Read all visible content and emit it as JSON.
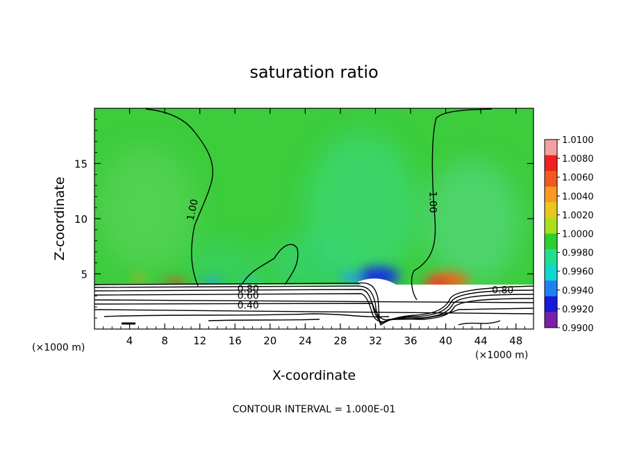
{
  "chart_data": {
    "type": "heatmap",
    "title": "saturation ratio",
    "xlabel": "X-coordinate",
    "ylabel": "Z-coordinate",
    "x_unit_left": "(×1000 m)",
    "x_unit_right": "(×1000 m)",
    "xlim": [
      0,
      50
    ],
    "ylim": [
      0,
      20
    ],
    "x_ticks": [
      4,
      8,
      12,
      16,
      20,
      24,
      28,
      32,
      36,
      40,
      44,
      48
    ],
    "y_ticks": [
      5,
      10,
      15
    ],
    "colorbar": {
      "labels": [
        "1.0100",
        "1.0080",
        "1.0060",
        "1.0040",
        "1.0020",
        "1.0000",
        "0.9980",
        "0.9960",
        "0.9940",
        "0.9920",
        "0.9900"
      ],
      "colors": [
        "#f4a0a0",
        "#f02020",
        "#f05a1e",
        "#f79a1e",
        "#e8c81e",
        "#a8e01e",
        "#2dcf2d",
        "#20e090",
        "#10d8d0",
        "#2080f0",
        "#1818d8",
        "#7a20a8"
      ]
    },
    "contour_labels": [
      {
        "text": "1.00",
        "x": 11.2,
        "y": 10.8,
        "rotate": -78
      },
      {
        "text": "1.00",
        "x": 38.5,
        "y": 11.5,
        "rotate": 90
      },
      {
        "text": "0.80",
        "x": 17.5,
        "y": 3.6,
        "rotate": 0
      },
      {
        "text": "0.60",
        "x": 17.5,
        "y": 3.0,
        "rotate": 0
      },
      {
        "text": "0.40",
        "x": 17.5,
        "y": 2.1,
        "rotate": 0
      },
      {
        "text": "0.80",
        "x": 46.5,
        "y": 3.5,
        "rotate": 0
      }
    ],
    "footer": "CONTOUR INTERVAL = 1.000E-01",
    "grid": false
  }
}
